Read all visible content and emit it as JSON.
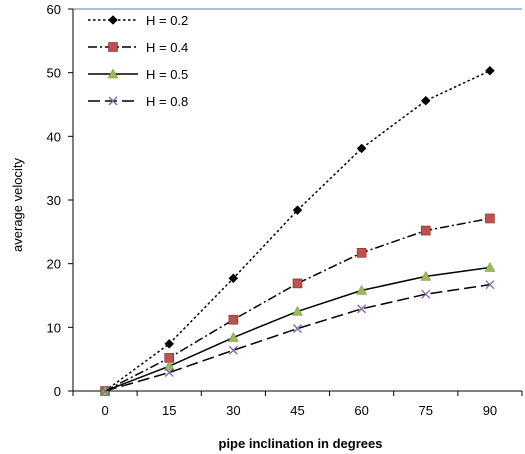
{
  "chart_data": {
    "type": "line",
    "title": "",
    "xlabel": "pipe inclination in degrees",
    "ylabel": "average velocity",
    "x": [
      0,
      15,
      30,
      45,
      60,
      75,
      90
    ],
    "x_tick_labels": [
      "0",
      "15",
      "30",
      "45",
      "60",
      "75",
      "90"
    ],
    "xlim": [
      -7.5,
      97.5
    ],
    "ylim": [
      0,
      60
    ],
    "y_ticks": [
      0,
      10,
      20,
      30,
      40,
      50,
      60
    ],
    "grid": false,
    "legend_position": "top-left",
    "series": [
      {
        "name": "H = 0.2",
        "values": [
          0,
          7.4,
          17.7,
          28.4,
          38.1,
          45.6,
          50.3
        ],
        "color": "#000000",
        "line_style": "dotted",
        "marker": "diamond",
        "marker_color": "#000000"
      },
      {
        "name": "H = 0.4",
        "values": [
          0,
          5.2,
          11.2,
          16.9,
          21.7,
          25.2,
          27.1
        ],
        "color": "#000000",
        "line_style": "dash-dot",
        "marker": "square",
        "marker_color": "#C0504D"
      },
      {
        "name": "H = 0.5",
        "values": [
          0,
          3.9,
          8.4,
          12.5,
          15.8,
          18.0,
          19.4
        ],
        "color": "#000000",
        "line_style": "solid",
        "marker": "triangle",
        "marker_color": "#9BBB59"
      },
      {
        "name": "H = 0.8",
        "values": [
          0,
          2.9,
          6.4,
          9.8,
          12.9,
          15.2,
          16.7
        ],
        "color": "#000000",
        "line_style": "long-dash",
        "marker": "x",
        "marker_color": "#8064A2"
      }
    ]
  }
}
